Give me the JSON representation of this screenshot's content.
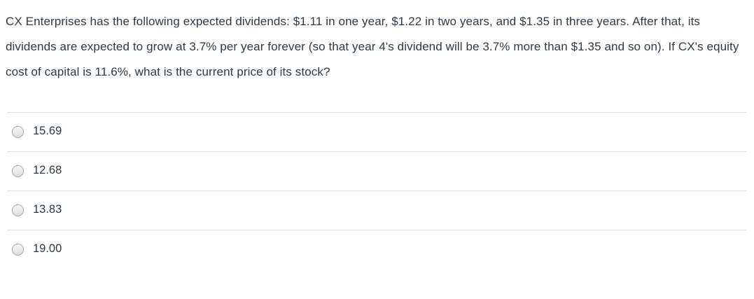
{
  "question": {
    "text": "CX Enterprises has the following expected dividends: $1.11 in one year, $1.22 in two years, and $1.35 in three years. After that, its dividends are expected to grow at 3.7% per year forever (so that year 4's dividend will be 3.7% more than $1.35 and so on). If CX's equity cost of capital is 11.6%, what is the current price of its stock?"
  },
  "answers": [
    {
      "label": "15.69",
      "selected": false
    },
    {
      "label": "12.68",
      "selected": false
    },
    {
      "label": "13.83",
      "selected": false
    },
    {
      "label": "19.00",
      "selected": false
    }
  ],
  "colors": {
    "text": "#2D3B45",
    "divider": "#dddddd",
    "radio_border": "#a6a6a6",
    "radio_fill": "#ededed",
    "background": "#ffffff"
  }
}
